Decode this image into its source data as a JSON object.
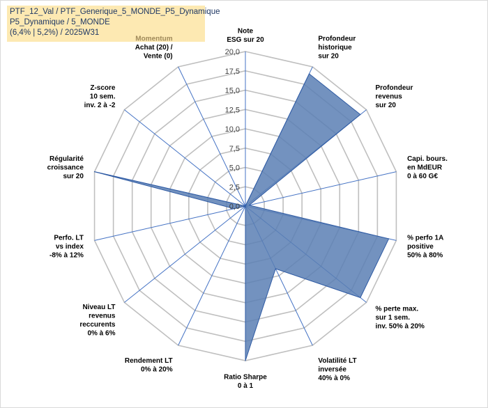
{
  "info_box": {
    "line1": "PTF_12_Val / PTF_Generique_5_MONDE_P5_Dynamique",
    "line2": "P5_Dynamique / 5_MONDE",
    "line3": "(6,4% | 5,2%) / 2025W31"
  },
  "colors": {
    "fill": "#5b7fb4",
    "stroke": "#2e5aa3",
    "grid": "#bfbfbf",
    "spoke": "#4472c4",
    "info_bg": "#fde9b2",
    "info_text": "#1f3864",
    "accent_label": "#a08a5a"
  },
  "chart_data": {
    "type": "radar",
    "rmin": 0,
    "rmax": 20,
    "ticks": [
      "0,0",
      "2,5",
      "5,0",
      "7,5",
      "10,0",
      "12,5",
      "15,0",
      "17,5",
      "20,0"
    ],
    "axes": [
      {
        "lines": [
          "Note",
          "ESG sur 20"
        ],
        "value": 0,
        "accent_line": -1
      },
      {
        "lines": [
          "Profondeur",
          "historique",
          "sur 20"
        ],
        "value": 19,
        "accent_line": -1
      },
      {
        "lines": [
          "Profondeur",
          "revenus",
          "sur 20"
        ],
        "value": 19,
        "accent_line": -1
      },
      {
        "lines": [
          "Capi. bours.",
          "en MdEUR",
          "0 à 60 G€"
        ],
        "value": 0.5,
        "accent_line": -1
      },
      {
        "lines": [
          "% perfo 1A",
          "positive",
          "50% à 80%"
        ],
        "value": 19,
        "accent_line": -1
      },
      {
        "lines": [
          "% perte max.",
          "sur 1 sem.",
          "inv. 50% à 20%"
        ],
        "value": 19,
        "accent_line": -1
      },
      {
        "lines": [
          "Volatilité LT",
          "inversée",
          "40% à 0%"
        ],
        "value": 9,
        "accent_line": -1
      },
      {
        "lines": [
          "Ratio Sharpe",
          "0 à 1"
        ],
        "value": 20,
        "accent_line": -1
      },
      {
        "lines": [
          "Rendement LT",
          "0% à 20%"
        ],
        "value": 0,
        "accent_line": -1
      },
      {
        "lines": [
          "Niveau LT",
          "revenus",
          "reccurents",
          "0% à 6%"
        ],
        "value": 0,
        "accent_line": -1
      },
      {
        "lines": [
          "Perfo. LT",
          "vs index",
          "-8% à 12%"
        ],
        "value": 1.5,
        "accent_line": -1
      },
      {
        "lines": [
          "Régularité",
          "croissance",
          "sur 20"
        ],
        "value": 20,
        "accent_line": -1
      },
      {
        "lines": [
          "Z-score",
          "10 sem.",
          "inv. 2 à -2"
        ],
        "value": 0,
        "accent_line": -1
      },
      {
        "lines": [
          "Momentum",
          "Achat (20) /",
          "Vente (0)"
        ],
        "value": 0,
        "accent_line": 0
      }
    ]
  }
}
